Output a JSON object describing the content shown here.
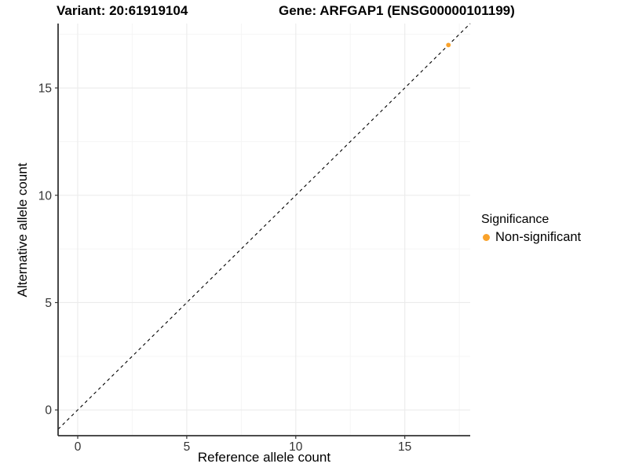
{
  "titles": {
    "variant": "Variant: 20:61919104",
    "gene": "Gene: ARFGAP1 (ENSG00000101199)"
  },
  "chart_data": {
    "type": "scatter",
    "xlabel": "Reference allele count",
    "ylabel": "Alternative allele count",
    "xlim": [
      -0.9,
      18.0
    ],
    "ylim": [
      -1.2,
      18.0
    ],
    "x_ticks": [
      0,
      5,
      10,
      15
    ],
    "y_ticks": [
      0,
      5,
      10,
      15
    ],
    "x_minor_ticks": [
      2.5,
      7.5,
      12.5,
      17.5
    ],
    "y_minor_ticks": [
      2.5,
      7.5,
      12.5,
      17.5
    ],
    "grid": true,
    "points": [
      {
        "x": 17,
        "y": 17,
        "series": "Non-significant"
      }
    ],
    "identity_line": {
      "slope": 1,
      "intercept": 0,
      "style": "dashed",
      "color": "#000000"
    },
    "legend": {
      "title": "Significance",
      "position": "right",
      "entries": [
        {
          "label": "Non-significant",
          "color": "#F9A22B"
        }
      ]
    }
  },
  "colors": {
    "point": "#F9A22B",
    "axis": "#333333",
    "tick_text": "#333333",
    "grid_major": "#EBEBEB",
    "grid_minor": "#F5F5F5",
    "background": "#FFFFFF",
    "title_text": "#000000"
  }
}
